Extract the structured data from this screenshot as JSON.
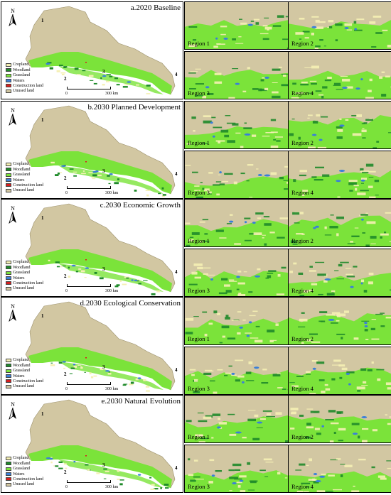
{
  "scenarios": [
    {
      "title": "a.2020 Baseline"
    },
    {
      "title": "b.2030 Planned Development"
    },
    {
      "title": "c.2030 Economic Growth"
    },
    {
      "title": "d.2030  Ecological Conservation"
    },
    {
      "title": "e.2030 Natural Evolution"
    }
  ],
  "regions": [
    "Region 1",
    "Region 2",
    "Region 3",
    "Region 4"
  ],
  "region_numbers": [
    "1",
    "2",
    "3",
    "4"
  ],
  "north_label": "N",
  "scale": {
    "zero": "0",
    "end": "300 km"
  },
  "legend": [
    {
      "label": "Cropland",
      "color": "#f5f0b4"
    },
    {
      "label": "Woodland",
      "color": "#1f8a2a"
    },
    {
      "label": "Grassland",
      "color": "#7be33a"
    },
    {
      "label": "Waters",
      "color": "#3a7fd9"
    },
    {
      "label": "Construction land",
      "color": "#d81e1e"
    },
    {
      "label": "Unused land",
      "color": "#d2c7a2"
    }
  ]
}
